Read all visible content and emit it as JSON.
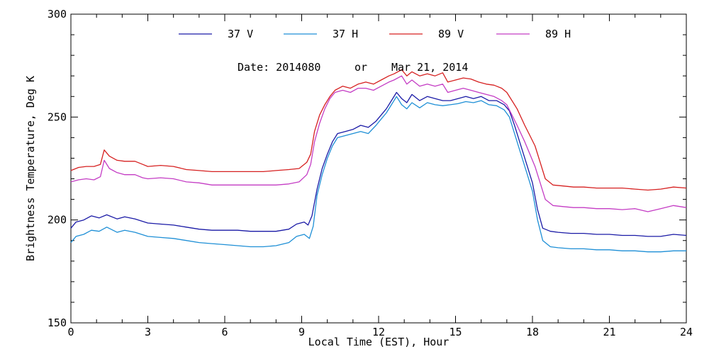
{
  "chart_data": {
    "type": "line",
    "title": "",
    "annotation": {
      "date_label": "Date: 2014080",
      "or_label": "or",
      "date_text": "Mar 21, 2014"
    },
    "xlabel": "Local Time (EST), Hour",
    "ylabel": "Brightness Temperature, Deg K",
    "xlim": [
      0,
      24
    ],
    "ylim": [
      150,
      300
    ],
    "xticks": [
      0,
      3,
      6,
      9,
      12,
      15,
      18,
      21,
      24
    ],
    "yticks": [
      150,
      200,
      250,
      300
    ],
    "xtick_labels": [
      "0",
      "3",
      "6",
      "9",
      "12",
      "15",
      "18",
      "21",
      "24"
    ],
    "ytick_labels": [
      "150",
      "200",
      "250",
      "300"
    ],
    "legend_position": "top-center",
    "grid": false,
    "series": [
      {
        "name": "37 V",
        "color": "#1a1aa6",
        "points": [
          [
            0,
            196
          ],
          [
            0.2,
            199
          ],
          [
            0.5,
            200
          ],
          [
            0.8,
            202
          ],
          [
            1.1,
            201
          ],
          [
            1.4,
            202.5
          ],
          [
            1.8,
            200.5
          ],
          [
            2.1,
            201.5
          ],
          [
            2.5,
            200.5
          ],
          [
            3,
            198.5
          ],
          [
            3.5,
            198
          ],
          [
            4,
            197.5
          ],
          [
            4.5,
            196.5
          ],
          [
            5,
            195.5
          ],
          [
            5.5,
            195
          ],
          [
            6,
            195
          ],
          [
            6.5,
            195
          ],
          [
            7,
            194.5
          ],
          [
            7.5,
            194.5
          ],
          [
            8,
            194.5
          ],
          [
            8.5,
            195.5
          ],
          [
            8.8,
            198
          ],
          [
            9.1,
            199
          ],
          [
            9.25,
            197.5
          ],
          [
            9.4,
            202
          ],
          [
            9.6,
            215
          ],
          [
            9.8,
            225
          ],
          [
            10,
            232
          ],
          [
            10.2,
            238
          ],
          [
            10.4,
            242
          ],
          [
            10.7,
            243
          ],
          [
            11,
            244
          ],
          [
            11.3,
            246
          ],
          [
            11.6,
            245
          ],
          [
            11.9,
            248
          ],
          [
            12.1,
            251
          ],
          [
            12.3,
            254
          ],
          [
            12.5,
            258
          ],
          [
            12.7,
            262
          ],
          [
            12.9,
            259
          ],
          [
            13.1,
            257
          ],
          [
            13.3,
            261
          ],
          [
            13.6,
            258
          ],
          [
            13.9,
            260
          ],
          [
            14.2,
            259
          ],
          [
            14.5,
            258
          ],
          [
            14.8,
            258
          ],
          [
            15.1,
            259
          ],
          [
            15.4,
            260
          ],
          [
            15.7,
            259
          ],
          [
            16,
            260
          ],
          [
            16.3,
            258
          ],
          [
            16.6,
            258
          ],
          [
            16.9,
            256
          ],
          [
            17.1,
            253
          ],
          [
            17.3,
            246
          ],
          [
            17.5,
            238
          ],
          [
            17.8,
            226
          ],
          [
            18.0,
            218
          ],
          [
            18.2,
            205
          ],
          [
            18.4,
            196
          ],
          [
            18.7,
            194.5
          ],
          [
            19,
            194
          ],
          [
            19.5,
            193.5
          ],
          [
            20,
            193.5
          ],
          [
            20.5,
            193
          ],
          [
            21,
            193
          ],
          [
            21.5,
            192.5
          ],
          [
            22,
            192.5
          ],
          [
            22.5,
            192
          ],
          [
            23,
            192
          ],
          [
            23.5,
            193
          ],
          [
            24,
            192.5
          ]
        ]
      },
      {
        "name": "37 H",
        "color": "#1e8fd6",
        "points": [
          [
            0,
            189
          ],
          [
            0.2,
            192
          ],
          [
            0.5,
            193
          ],
          [
            0.8,
            195
          ],
          [
            1.1,
            194.5
          ],
          [
            1.4,
            196.5
          ],
          [
            1.8,
            194
          ],
          [
            2.1,
            195
          ],
          [
            2.5,
            194
          ],
          [
            3,
            192
          ],
          [
            3.5,
            191.5
          ],
          [
            4,
            191
          ],
          [
            4.5,
            190
          ],
          [
            5,
            189
          ],
          [
            5.5,
            188.5
          ],
          [
            6,
            188
          ],
          [
            6.5,
            187.5
          ],
          [
            7,
            187
          ],
          [
            7.5,
            187
          ],
          [
            8,
            187.5
          ],
          [
            8.5,
            189
          ],
          [
            8.8,
            192
          ],
          [
            9.1,
            193
          ],
          [
            9.3,
            191
          ],
          [
            9.45,
            197
          ],
          [
            9.6,
            212
          ],
          [
            9.8,
            222
          ],
          [
            10,
            230
          ],
          [
            10.2,
            236
          ],
          [
            10.4,
            240
          ],
          [
            10.7,
            241
          ],
          [
            11,
            242
          ],
          [
            11.3,
            243
          ],
          [
            11.6,
            242
          ],
          [
            11.9,
            246
          ],
          [
            12.1,
            249
          ],
          [
            12.3,
            252
          ],
          [
            12.5,
            256
          ],
          [
            12.7,
            260
          ],
          [
            12.9,
            256
          ],
          [
            13.1,
            254
          ],
          [
            13.3,
            257
          ],
          [
            13.6,
            254.5
          ],
          [
            13.9,
            257
          ],
          [
            14.2,
            256
          ],
          [
            14.5,
            255.5
          ],
          [
            14.8,
            256
          ],
          [
            15.1,
            256.5
          ],
          [
            15.4,
            257.5
          ],
          [
            15.7,
            257
          ],
          [
            16,
            258
          ],
          [
            16.3,
            256
          ],
          [
            16.6,
            255.5
          ],
          [
            16.9,
            253.5
          ],
          [
            17.1,
            250
          ],
          [
            17.3,
            242
          ],
          [
            17.5,
            234
          ],
          [
            17.8,
            222
          ],
          [
            18.0,
            214
          ],
          [
            18.2,
            200
          ],
          [
            18.4,
            190
          ],
          [
            18.7,
            187
          ],
          [
            19,
            186.5
          ],
          [
            19.5,
            186
          ],
          [
            20,
            186
          ],
          [
            20.5,
            185.5
          ],
          [
            21,
            185.5
          ],
          [
            21.5,
            185
          ],
          [
            22,
            185
          ],
          [
            22.5,
            184.5
          ],
          [
            23,
            184.5
          ],
          [
            23.5,
            185
          ],
          [
            24,
            185
          ]
        ]
      },
      {
        "name": "89 V",
        "color": "#d62020",
        "points": [
          [
            0,
            224
          ],
          [
            0.3,
            225.5
          ],
          [
            0.6,
            226
          ],
          [
            0.9,
            226
          ],
          [
            1.15,
            227
          ],
          [
            1.3,
            234
          ],
          [
            1.5,
            231
          ],
          [
            1.8,
            229
          ],
          [
            2.1,
            228.5
          ],
          [
            2.5,
            228.5
          ],
          [
            2.8,
            227
          ],
          [
            3,
            226
          ],
          [
            3.5,
            226.5
          ],
          [
            4,
            226
          ],
          [
            4.5,
            224.5
          ],
          [
            5,
            224
          ],
          [
            5.5,
            223.5
          ],
          [
            6,
            223.5
          ],
          [
            6.5,
            223.5
          ],
          [
            7,
            223.5
          ],
          [
            7.5,
            223.5
          ],
          [
            8,
            224
          ],
          [
            8.5,
            224.5
          ],
          [
            8.9,
            225
          ],
          [
            9.2,
            228
          ],
          [
            9.35,
            232
          ],
          [
            9.5,
            243
          ],
          [
            9.7,
            251
          ],
          [
            9.9,
            256
          ],
          [
            10.1,
            260
          ],
          [
            10.3,
            263
          ],
          [
            10.6,
            265
          ],
          [
            10.9,
            264
          ],
          [
            11.2,
            266
          ],
          [
            11.5,
            267
          ],
          [
            11.8,
            266
          ],
          [
            12.1,
            268
          ],
          [
            12.4,
            270
          ],
          [
            12.6,
            271
          ],
          [
            12.9,
            273
          ],
          [
            13.1,
            270
          ],
          [
            13.3,
            272
          ],
          [
            13.6,
            270
          ],
          [
            13.9,
            271
          ],
          [
            14.2,
            270
          ],
          [
            14.5,
            271.5
          ],
          [
            14.7,
            267
          ],
          [
            15,
            268
          ],
          [
            15.3,
            269
          ],
          [
            15.6,
            268.5
          ],
          [
            15.9,
            267
          ],
          [
            16.2,
            266
          ],
          [
            16.5,
            265.5
          ],
          [
            16.8,
            264
          ],
          [
            17,
            262
          ],
          [
            17.2,
            258
          ],
          [
            17.4,
            254
          ],
          [
            17.7,
            246
          ],
          [
            17.9,
            241
          ],
          [
            18.1,
            236
          ],
          [
            18.3,
            228
          ],
          [
            18.5,
            220
          ],
          [
            18.8,
            217
          ],
          [
            19.2,
            216.5
          ],
          [
            19.6,
            216
          ],
          [
            20,
            216
          ],
          [
            20.5,
            215.5
          ],
          [
            21,
            215.5
          ],
          [
            21.5,
            215.5
          ],
          [
            22,
            215
          ],
          [
            22.5,
            214.5
          ],
          [
            23,
            215
          ],
          [
            23.5,
            216
          ],
          [
            24,
            215.5
          ]
        ]
      },
      {
        "name": "89 H",
        "color": "#c43cc4",
        "points": [
          [
            0,
            218.5
          ],
          [
            0.3,
            219.5
          ],
          [
            0.6,
            220
          ],
          [
            0.9,
            219.5
          ],
          [
            1.15,
            221
          ],
          [
            1.3,
            229
          ],
          [
            1.5,
            225
          ],
          [
            1.8,
            223
          ],
          [
            2.1,
            222
          ],
          [
            2.5,
            222
          ],
          [
            2.8,
            220.5
          ],
          [
            3,
            220
          ],
          [
            3.5,
            220.5
          ],
          [
            4,
            220
          ],
          [
            4.5,
            218.5
          ],
          [
            5,
            218
          ],
          [
            5.5,
            217
          ],
          [
            6,
            217
          ],
          [
            6.5,
            217
          ],
          [
            7,
            217
          ],
          [
            7.5,
            217
          ],
          [
            8,
            217
          ],
          [
            8.5,
            217.5
          ],
          [
            8.9,
            218.5
          ],
          [
            9.2,
            222
          ],
          [
            9.35,
            227
          ],
          [
            9.5,
            238
          ],
          [
            9.7,
            247
          ],
          [
            9.9,
            254
          ],
          [
            10.1,
            259
          ],
          [
            10.3,
            262
          ],
          [
            10.6,
            263
          ],
          [
            10.9,
            262
          ],
          [
            11.2,
            264
          ],
          [
            11.5,
            264
          ],
          [
            11.8,
            263
          ],
          [
            12.1,
            265
          ],
          [
            12.4,
            267
          ],
          [
            12.6,
            268
          ],
          [
            12.9,
            270
          ],
          [
            13.1,
            266
          ],
          [
            13.3,
            268
          ],
          [
            13.6,
            265
          ],
          [
            13.9,
            266
          ],
          [
            14.2,
            265
          ],
          [
            14.5,
            266
          ],
          [
            14.7,
            262
          ],
          [
            15,
            263
          ],
          [
            15.3,
            264
          ],
          [
            15.6,
            263
          ],
          [
            15.9,
            262
          ],
          [
            16.2,
            261
          ],
          [
            16.5,
            260
          ],
          [
            16.8,
            258
          ],
          [
            17,
            256
          ],
          [
            17.2,
            251
          ],
          [
            17.4,
            246
          ],
          [
            17.7,
            238
          ],
          [
            17.9,
            232
          ],
          [
            18.1,
            226
          ],
          [
            18.3,
            218
          ],
          [
            18.5,
            210
          ],
          [
            18.8,
            207
          ],
          [
            19.2,
            206.5
          ],
          [
            19.6,
            206
          ],
          [
            20,
            206
          ],
          [
            20.5,
            205.5
          ],
          [
            21,
            205.5
          ],
          [
            21.5,
            205
          ],
          [
            22,
            205.5
          ],
          [
            22.5,
            204
          ],
          [
            23,
            205.5
          ],
          [
            23.5,
            207
          ],
          [
            24,
            206
          ]
        ]
      }
    ]
  }
}
